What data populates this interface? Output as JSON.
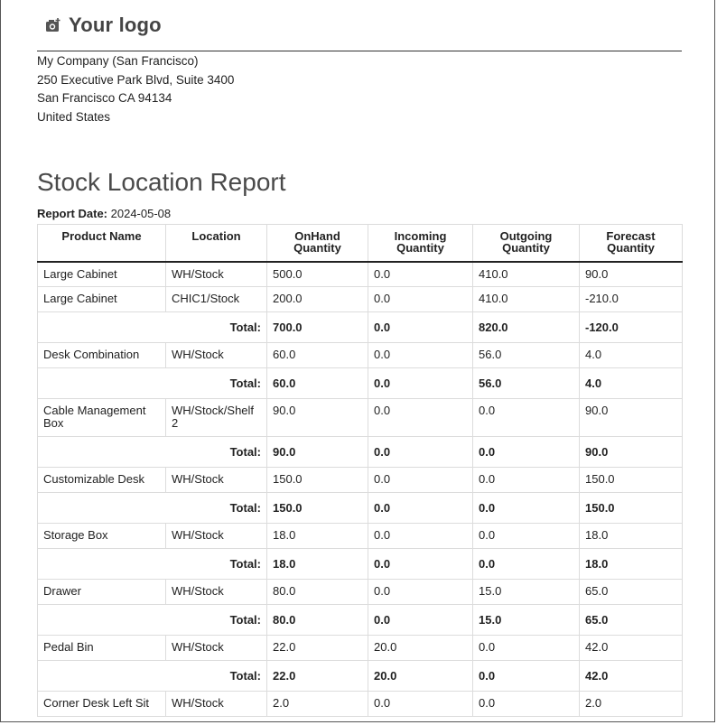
{
  "header": {
    "logo_text": "Your logo",
    "company_lines": [
      "My Company (San Francisco)",
      "250 Executive Park Blvd, Suite 3400",
      "San Francisco CA 94134",
      "United States"
    ]
  },
  "report": {
    "title": "Stock Location Report",
    "date_label": "Report Date:",
    "date_value": "2024-05-08",
    "total_label": "Total:",
    "columns": [
      [
        "Product Name"
      ],
      [
        "Location"
      ],
      [
        "OnHand",
        "Quantity"
      ],
      [
        "Incoming",
        "Quantity"
      ],
      [
        "Outgoing",
        "Quantity"
      ],
      [
        "Forecast",
        "Quantity"
      ]
    ],
    "groups": [
      {
        "rows": [
          {
            "product": "Large Cabinet",
            "location": "WH/Stock",
            "onhand": "500.0",
            "incoming": "0.0",
            "outgoing": "410.0",
            "forecast": "90.0"
          },
          {
            "product": "Large Cabinet",
            "location": "CHIC1/Stock",
            "onhand": "200.0",
            "incoming": "0.0",
            "outgoing": "410.0",
            "forecast": "-210.0"
          }
        ],
        "total": {
          "onhand": "700.0",
          "incoming": "0.0",
          "outgoing": "820.0",
          "forecast": "-120.0"
        }
      },
      {
        "rows": [
          {
            "product": "Desk Combination",
            "location": "WH/Stock",
            "onhand": "60.0",
            "incoming": "0.0",
            "outgoing": "56.0",
            "forecast": "4.0"
          }
        ],
        "total": {
          "onhand": "60.0",
          "incoming": "0.0",
          "outgoing": "56.0",
          "forecast": "4.0"
        }
      },
      {
        "rows": [
          {
            "product": "Cable Management Box",
            "location": "WH/Stock/Shelf 2",
            "onhand": "90.0",
            "incoming": "0.0",
            "outgoing": "0.0",
            "forecast": "90.0"
          }
        ],
        "total": {
          "onhand": "90.0",
          "incoming": "0.0",
          "outgoing": "0.0",
          "forecast": "90.0"
        }
      },
      {
        "rows": [
          {
            "product": "Customizable Desk",
            "location": "WH/Stock",
            "onhand": "150.0",
            "incoming": "0.0",
            "outgoing": "0.0",
            "forecast": "150.0"
          }
        ],
        "total": {
          "onhand": "150.0",
          "incoming": "0.0",
          "outgoing": "0.0",
          "forecast": "150.0"
        }
      },
      {
        "rows": [
          {
            "product": "Storage Box",
            "location": "WH/Stock",
            "onhand": "18.0",
            "incoming": "0.0",
            "outgoing": "0.0",
            "forecast": "18.0"
          }
        ],
        "total": {
          "onhand": "18.0",
          "incoming": "0.0",
          "outgoing": "0.0",
          "forecast": "18.0"
        }
      },
      {
        "rows": [
          {
            "product": "Drawer",
            "location": "WH/Stock",
            "onhand": "80.0",
            "incoming": "0.0",
            "outgoing": "15.0",
            "forecast": "65.0"
          }
        ],
        "total": {
          "onhand": "80.0",
          "incoming": "0.0",
          "outgoing": "15.0",
          "forecast": "65.0"
        }
      },
      {
        "rows": [
          {
            "product": "Pedal Bin",
            "location": "WH/Stock",
            "onhand": "22.0",
            "incoming": "20.0",
            "outgoing": "0.0",
            "forecast": "42.0"
          }
        ],
        "total": {
          "onhand": "22.0",
          "incoming": "20.0",
          "outgoing": "0.0",
          "forecast": "42.0"
        }
      },
      {
        "rows": [
          {
            "product": "Corner Desk Left Sit",
            "location": "WH/Stock",
            "onhand": "2.0",
            "incoming": "0.0",
            "outgoing": "0.0",
            "forecast": "2.0"
          }
        ],
        "total": null
      }
    ]
  }
}
